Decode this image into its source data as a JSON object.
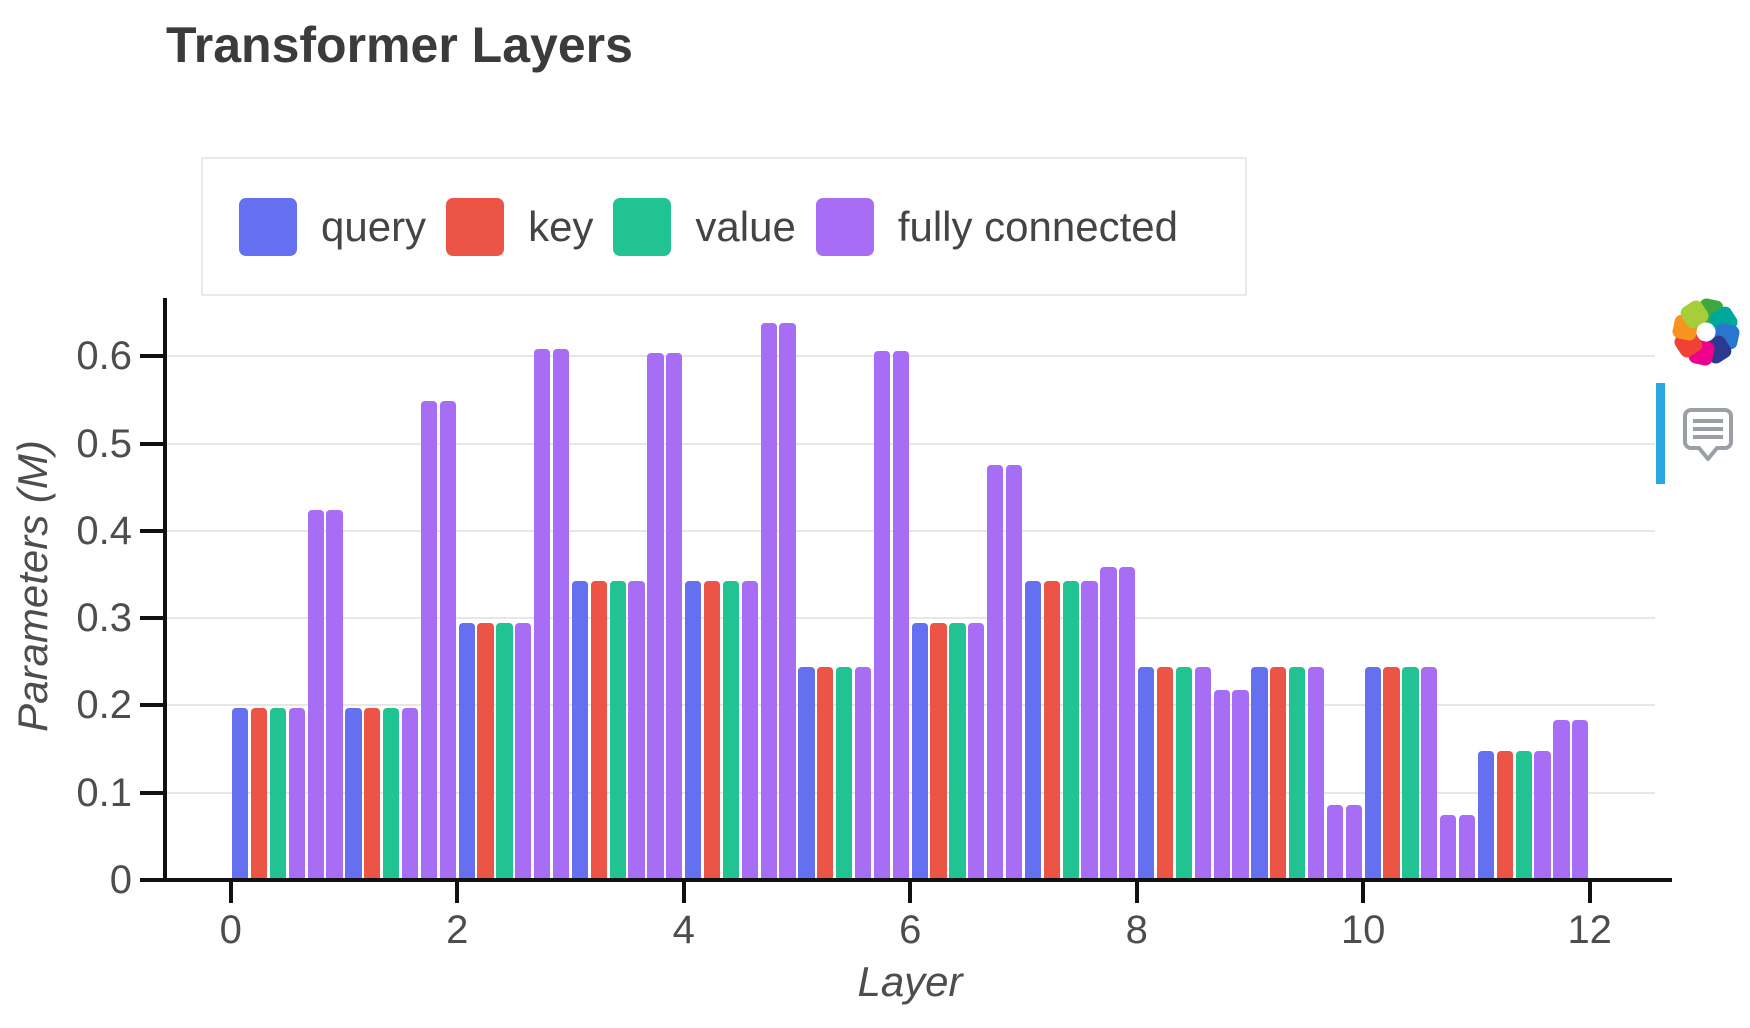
{
  "header": {
    "title": "Transformer Layers"
  },
  "chart_data": {
    "type": "bar",
    "title": "Transformer Layers",
    "xlabel": "Layer",
    "ylabel": "Parameters (M)",
    "x_ticks": [
      0,
      2,
      4,
      6,
      8,
      10,
      12
    ],
    "y_ticks": [
      0,
      0.1,
      0.2,
      0.3,
      0.4,
      0.5,
      0.6
    ],
    "xlim": [
      0,
      12.6
    ],
    "ylim": [
      0,
      0.666
    ],
    "grid": true,
    "legend_position": "top-left-inside",
    "bars_per_layer": [
      "query",
      "key",
      "value",
      "fully connected",
      "fully connected",
      "fully connected"
    ],
    "series": [
      {
        "name": "query",
        "color": "#6470F0"
      },
      {
        "name": "key",
        "color": "#EC5545"
      },
      {
        "name": "value",
        "color": "#21C392"
      },
      {
        "name": "fully connected",
        "color": "#A76EF5"
      }
    ],
    "layers": [
      {
        "layer": 0,
        "query": 0.197,
        "key": 0.197,
        "value": 0.197,
        "fully_connected": [
          0.197,
          0.424,
          0.424
        ]
      },
      {
        "layer": 1,
        "query": 0.197,
        "key": 0.197,
        "value": 0.197,
        "fully_connected": [
          0.197,
          0.549,
          0.549
        ]
      },
      {
        "layer": 2,
        "query": 0.294,
        "key": 0.294,
        "value": 0.294,
        "fully_connected": [
          0.294,
          0.608,
          0.608
        ]
      },
      {
        "layer": 3,
        "query": 0.343,
        "key": 0.343,
        "value": 0.343,
        "fully_connected": [
          0.343,
          0.604,
          0.604
        ]
      },
      {
        "layer": 4,
        "query": 0.343,
        "key": 0.343,
        "value": 0.343,
        "fully_connected": [
          0.343,
          0.638,
          0.638
        ]
      },
      {
        "layer": 5,
        "query": 0.244,
        "key": 0.244,
        "value": 0.244,
        "fully_connected": [
          0.244,
          0.606,
          0.606
        ]
      },
      {
        "layer": 6,
        "query": 0.294,
        "key": 0.294,
        "value": 0.294,
        "fully_connected": [
          0.294,
          0.475,
          0.475
        ]
      },
      {
        "layer": 7,
        "query": 0.343,
        "key": 0.343,
        "value": 0.343,
        "fully_connected": [
          0.343,
          0.358,
          0.358
        ]
      },
      {
        "layer": 8,
        "query": 0.244,
        "key": 0.244,
        "value": 0.244,
        "fully_connected": [
          0.244,
          0.218,
          0.218
        ]
      },
      {
        "layer": 9,
        "query": 0.244,
        "key": 0.244,
        "value": 0.244,
        "fully_connected": [
          0.244,
          0.086,
          0.086
        ]
      },
      {
        "layer": 10,
        "query": 0.244,
        "key": 0.244,
        "value": 0.244,
        "fully_connected": [
          0.244,
          0.074,
          0.074
        ]
      },
      {
        "layer": 11,
        "query": 0.148,
        "key": 0.148,
        "value": 0.148,
        "fully_connected": [
          0.148,
          0.183,
          0.183
        ]
      }
    ]
  },
  "side_panel": {
    "logo_icon": "color-pinwheel-logo",
    "logo_petal_colors": [
      "#3BA93F",
      "#00A79D",
      "#2A75D0",
      "#2B3990",
      "#EC008C",
      "#EF4136",
      "#F7941D",
      "#A6CE39"
    ],
    "scrollbar_color": "#2BA8E0",
    "comment_icon": "comment-bubble-icon",
    "comment_icon_color": "#9AA0A6"
  },
  "colors": {
    "axis": "#111111",
    "grid": "#E7E7E7",
    "tick_label": "#4D4D4D",
    "title": "#3B3B3B",
    "legend_border": "#E9E9E9",
    "background": "#FFFFFF"
  }
}
